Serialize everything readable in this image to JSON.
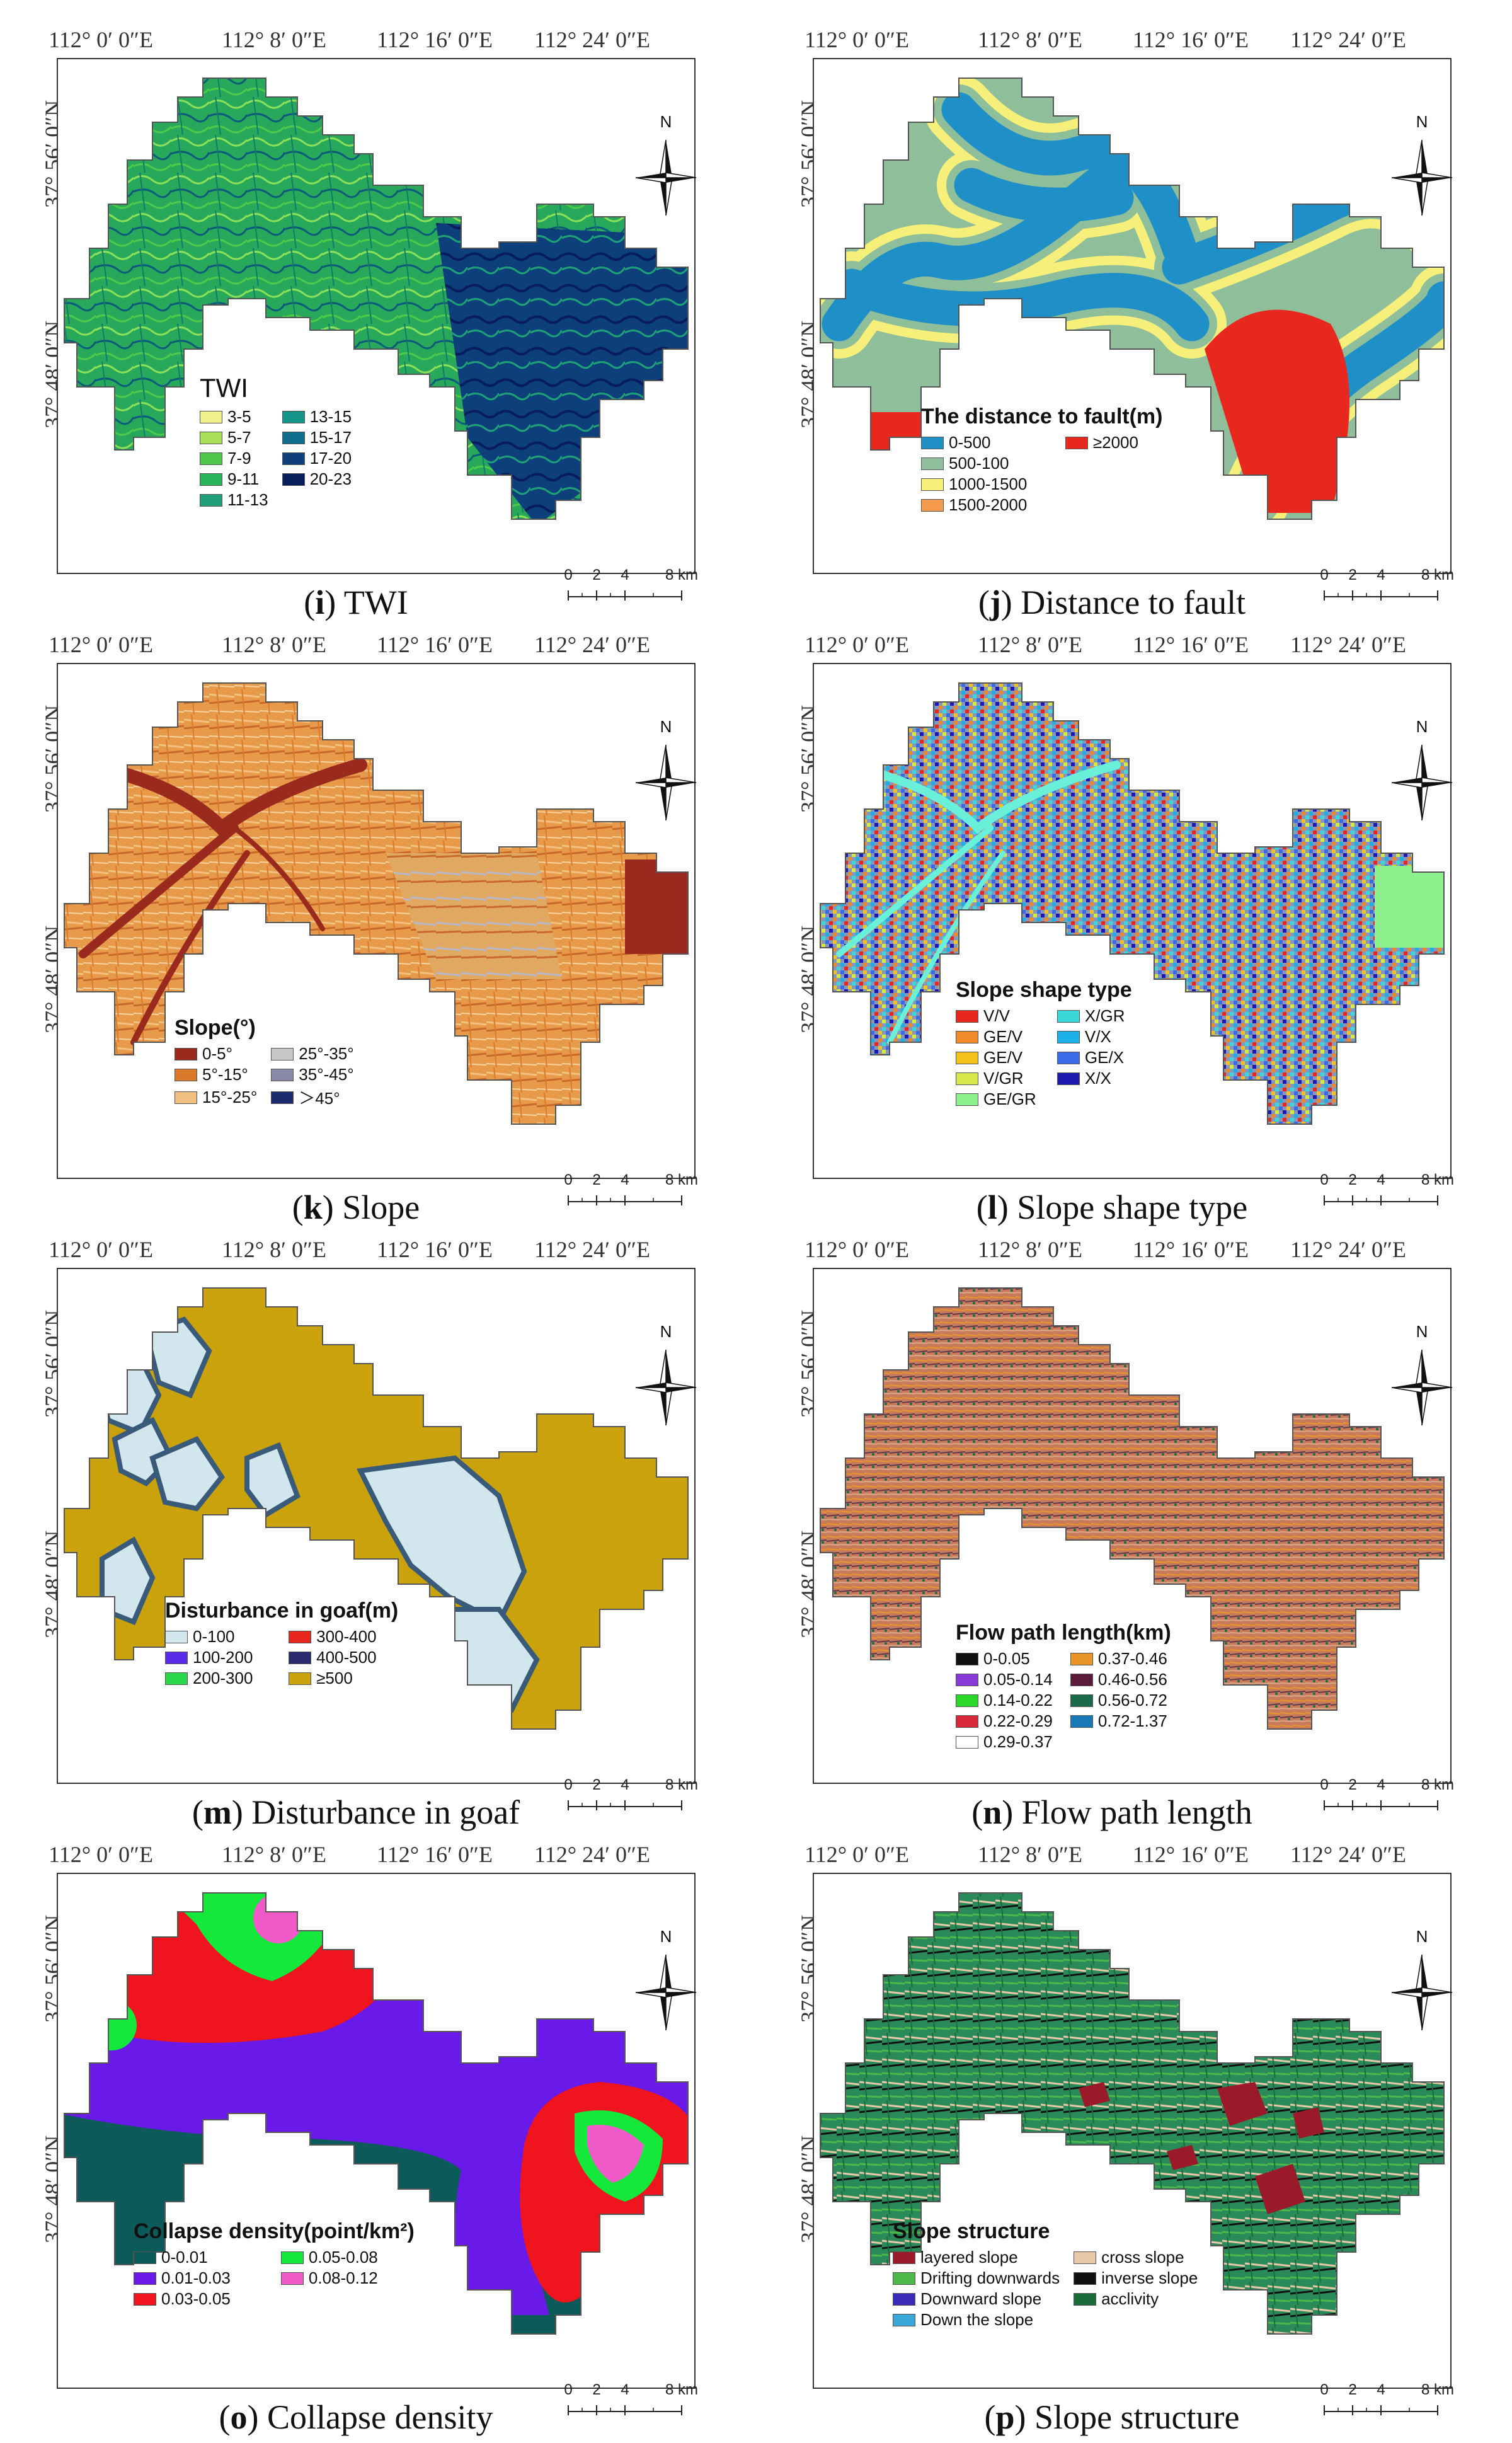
{
  "axes": {
    "x_ticks": [
      "112° 0′ 0″E",
      "112° 8′ 0″E",
      "112° 16′ 0″E",
      "112° 24′ 0″E"
    ],
    "y_ticks": [
      "37° 56′ 0″N",
      "37° 48′ 0″N"
    ]
  },
  "north_label": "N",
  "scale": {
    "labels": [
      "0",
      "2",
      "4",
      "8 km"
    ]
  },
  "panels": [
    {
      "id": "i",
      "caption_letter": "i",
      "caption_text": " TWI",
      "legend_title": "TWI",
      "legend_plain": true,
      "legend_rows": 5,
      "legend": [
        {
          "label": "3-5",
          "color": "#f2f28c"
        },
        {
          "label": "5-7",
          "color": "#a8e05a"
        },
        {
          "label": "7-9",
          "color": "#4fc94a"
        },
        {
          "label": "9-11",
          "color": "#27b35a"
        },
        {
          "label": "11-13",
          "color": "#1fa078"
        },
        {
          "label": "13-15",
          "color": "#15958a"
        },
        {
          "label": "15-17",
          "color": "#116e8c"
        },
        {
          "label": "17-20",
          "color": "#0d3f7a"
        },
        {
          "label": "20-23",
          "color": "#081d5c"
        }
      ],
      "map_style": "twi"
    },
    {
      "id": "j",
      "caption_letter": "j",
      "caption_text": " Distance to fault",
      "legend_title": "The distance to fault(m)",
      "legend_plain": false,
      "legend_rows": 4,
      "legend": [
        {
          "label": "0-500",
          "color": "#1f8fc8"
        },
        {
          "label": "500-100",
          "color": "#8fbf9a"
        },
        {
          "label": "1000-1500",
          "color": "#f6f07a"
        },
        {
          "label": "1500-2000",
          "color": "#f59a4a"
        },
        {
          "label": "≥2000",
          "color": "#e8281e"
        }
      ],
      "map_style": "fault"
    },
    {
      "id": "k",
      "caption_letter": "k",
      "caption_text": " Slope",
      "legend_title": "Slope(°)",
      "legend_plain": false,
      "legend_rows": 3,
      "legend": [
        {
          "label": "0-5°",
          "color": "#9b2a1e"
        },
        {
          "label": "5°-15°",
          "color": "#d97a2a"
        },
        {
          "label": "15°-25°",
          "color": "#f0c080"
        },
        {
          "label": "25°-35°",
          "color": "#c8c8c8"
        },
        {
          "label": "35°-45°",
          "color": "#8a8aa8"
        },
        {
          "label": "＞45°",
          "color": "#1c2a6e"
        }
      ],
      "map_style": "slope"
    },
    {
      "id": "l",
      "caption_letter": "l",
      "caption_text": " Slope shape type",
      "legend_title": "Slope shape type",
      "legend_plain": false,
      "legend_rows": 5,
      "legend": [
        {
          "label": "V/V",
          "color": "#e8281e"
        },
        {
          "label": "GE/V",
          "color": "#f08a2a"
        },
        {
          "label": "GE/V",
          "color": "#f4c21a"
        },
        {
          "label": "V/GR",
          "color": "#d8e84a"
        },
        {
          "label": "GE/GR",
          "color": "#8cf08c"
        },
        {
          "label": "X/GR",
          "color": "#3ad8d8"
        },
        {
          "label": "V/X",
          "color": "#1ab0e8"
        },
        {
          "label": "GE/X",
          "color": "#3a6ae8"
        },
        {
          "label": "X/X",
          "color": "#1a1ab0"
        }
      ],
      "map_style": "shape"
    },
    {
      "id": "m",
      "caption_letter": "m",
      "caption_text": " Disturbance in goaf",
      "legend_title": "Disturbance in goaf(m)",
      "legend_plain": false,
      "legend_rows": 3,
      "legend": [
        {
          "label": "0-100",
          "color": "#d2e6ee"
        },
        {
          "label": "100-200",
          "color": "#5a2ae8"
        },
        {
          "label": "200-300",
          "color": "#2ad84a"
        },
        {
          "label": "300-400",
          "color": "#e8281e"
        },
        {
          "label": "400-500",
          "color": "#2a2a6e"
        },
        {
          "label": "≥500",
          "color": "#c9a20c"
        }
      ],
      "map_style": "goaf"
    },
    {
      "id": "n",
      "caption_letter": "n",
      "caption_text": " Flow path length",
      "legend_title": "Flow path length(km)",
      "legend_plain": false,
      "legend_rows": 5,
      "legend": [
        {
          "label": "0-0.05",
          "color": "#111111"
        },
        {
          "label": "0.05-0.14",
          "color": "#8a3ad8"
        },
        {
          "label": "0.14-0.22",
          "color": "#2ad82a"
        },
        {
          "label": "0.22-0.29",
          "color": "#d8283a"
        },
        {
          "label": "0.29-0.37",
          "color": "#ffffff"
        },
        {
          "label": "0.37-0.46",
          "color": "#e8962a"
        },
        {
          "label": "0.46-0.56",
          "color": "#5a1a3a"
        },
        {
          "label": "0.56-0.72",
          "color": "#1a6a4a"
        },
        {
          "label": "0.72-1.37",
          "color": "#1a7ab8"
        }
      ],
      "map_style": "flow"
    },
    {
      "id": "o",
      "caption_letter": "o",
      "caption_text": " Collapse density",
      "legend_title": "Collapse density(point/km²)",
      "legend_plain": false,
      "legend_rows": 3,
      "legend": [
        {
          "label": "0-0.01",
          "color": "#0d5a5a"
        },
        {
          "label": "0.01-0.03",
          "color": "#6a1ae8"
        },
        {
          "label": "0.03-0.05",
          "color": "#f0141e"
        },
        {
          "label": "0.05-0.08",
          "color": "#14e83a"
        },
        {
          "label": "0.08-0.12",
          "color": "#f05ac8"
        }
      ],
      "map_style": "density"
    },
    {
      "id": "p",
      "caption_letter": "p",
      "caption_text": " Slope structure",
      "legend_title": "Slope structure",
      "legend_plain": false,
      "legend_rows": 4,
      "legend": [
        {
          "label": "layered slope",
          "color": "#9b1a2a"
        },
        {
          "label": "Drifting downwards",
          "color": "#4ab84a"
        },
        {
          "label": "Downward slope",
          "color": "#3a2ab8"
        },
        {
          "label": "Down the slope",
          "color": "#3aa8d8"
        },
        {
          "label": "cross slope",
          "color": "#e8c8a8"
        },
        {
          "label": "inverse slope",
          "color": "#111111"
        },
        {
          "label": "acclivity",
          "color": "#1a6a3a"
        }
      ],
      "map_style": "structure"
    }
  ]
}
